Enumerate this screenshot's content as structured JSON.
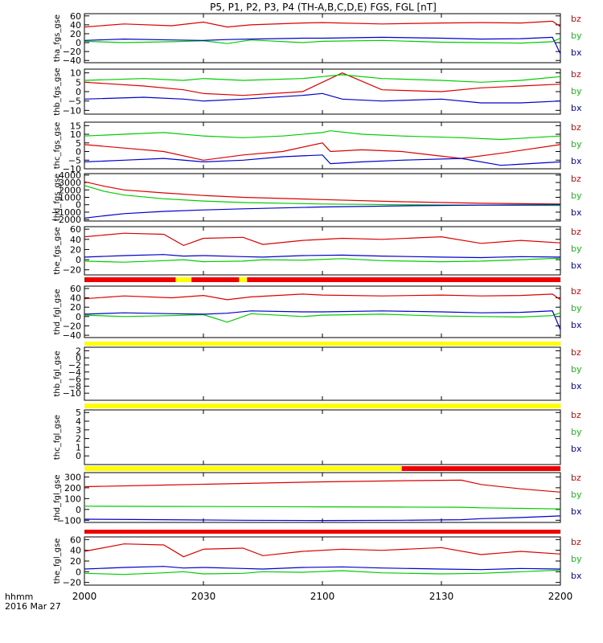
{
  "title": "P5, P1, P2, P3, P4 (TH-A,B,C,D,E) FGS, FGL [nT]",
  "x_axis": {
    "tick_labels": [
      "2000",
      "2030",
      "2100",
      "2130",
      "2200"
    ],
    "tick_minutes": [
      0,
      30,
      60,
      90,
      120
    ],
    "range_minutes": [
      0,
      120
    ],
    "format_label": "hhmm",
    "date_label": "2016 Mar 27"
  },
  "legend": [
    "bz",
    "by",
    "bx"
  ],
  "colors": {
    "bz": "#dd0000",
    "by": "#00cc00",
    "bx": "#0000cc",
    "bar_red": "#ee0000",
    "bar_yellow": "#ffff00",
    "axis": "#000000"
  },
  "chart_data": [
    {
      "type": "line",
      "ylabel": "tha_fgs_gse",
      "ylim": [
        -45,
        65
      ],
      "yticks": [
        -40,
        -20,
        0,
        20,
        40,
        60
      ],
      "grid": false,
      "x": [
        0,
        10,
        22,
        30,
        36,
        42,
        55,
        60,
        75,
        90,
        100,
        110,
        118,
        120
      ],
      "series": [
        {
          "name": "bz",
          "values": [
            35,
            42,
            38,
            46,
            35,
            40,
            44,
            45,
            42,
            44,
            45,
            44,
            48,
            36
          ]
        },
        {
          "name": "by",
          "values": [
            3,
            0,
            2,
            4,
            -2,
            6,
            0,
            3,
            5,
            1,
            0,
            -1,
            2,
            10
          ]
        },
        {
          "name": "bx",
          "values": [
            5,
            8,
            6,
            5,
            7,
            8,
            10,
            10,
            12,
            10,
            8,
            9,
            12,
            -25
          ]
        }
      ]
    },
    {
      "type": "line",
      "ylabel": "thb_fgs_gse",
      "ylim": [
        -12,
        12
      ],
      "yticks": [
        -10,
        -5,
        0,
        5,
        10
      ],
      "grid": false,
      "x": [
        0,
        15,
        25,
        30,
        40,
        55,
        60,
        65,
        75,
        90,
        100,
        110,
        120
      ],
      "series": [
        {
          "name": "bz",
          "values": [
            5,
            3,
            1,
            -1,
            -2,
            0,
            5,
            10,
            1,
            0,
            2,
            3,
            4
          ]
        },
        {
          "name": "by",
          "values": [
            6,
            7,
            6,
            7,
            6,
            7,
            8,
            9,
            7,
            6,
            5,
            6,
            8
          ]
        },
        {
          "name": "bx",
          "values": [
            -4,
            -3,
            -4,
            -5,
            -4,
            -2,
            -1,
            -4,
            -5,
            -4,
            -6,
            -6,
            -5
          ]
        }
      ]
    },
    {
      "type": "line",
      "ylabel": "thc_fgs_gse",
      "ylim": [
        -10,
        17
      ],
      "yticks": [
        -10,
        -5,
        0,
        5,
        10,
        15
      ],
      "grid": false,
      "x": [
        0,
        10,
        20,
        30,
        40,
        50,
        60,
        62,
        70,
        80,
        95,
        105,
        120
      ],
      "series": [
        {
          "name": "bz",
          "values": [
            4,
            2,
            0,
            -5,
            -2,
            0,
            5,
            0,
            1,
            0,
            -4,
            -1,
            4
          ]
        },
        {
          "name": "by",
          "values": [
            9,
            10,
            11,
            9,
            8,
            9,
            11,
            12,
            10,
            9,
            8,
            7,
            9
          ]
        },
        {
          "name": "bx",
          "values": [
            -6,
            -5,
            -4,
            -6,
            -5,
            -3,
            -2,
            -7,
            -6,
            -5,
            -4,
            -8,
            -6
          ]
        }
      ]
    },
    {
      "type": "line",
      "ylabel": "thd_fgs_gse",
      "ylim": [
        -2200,
        4200
      ],
      "yticks": [
        -2000,
        -1000,
        0,
        1000,
        2000,
        3000,
        4000
      ],
      "grid": false,
      "x": [
        0,
        5,
        10,
        20,
        30,
        40,
        60,
        80,
        100,
        120
      ],
      "series": [
        {
          "name": "bz",
          "values": [
            3100,
            2500,
            2000,
            1600,
            1250,
            1000,
            700,
            400,
            200,
            100
          ]
        },
        {
          "name": "by",
          "values": [
            2600,
            1800,
            1300,
            800,
            500,
            300,
            100,
            0,
            -50,
            -100
          ]
        },
        {
          "name": "bx",
          "values": [
            -1800,
            -1500,
            -1200,
            -900,
            -700,
            -550,
            -300,
            -150,
            -50,
            0
          ]
        }
      ]
    },
    {
      "type": "line",
      "ylabel": "the_fgs_gse",
      "ylim": [
        -30,
        65
      ],
      "yticks": [
        -20,
        0,
        20,
        40,
        60
      ],
      "grid": false,
      "x": [
        0,
        10,
        20,
        25,
        30,
        40,
        45,
        55,
        65,
        75,
        90,
        100,
        110,
        120
      ],
      "series": [
        {
          "name": "bz",
          "values": [
            45,
            52,
            50,
            28,
            42,
            44,
            30,
            38,
            42,
            40,
            45,
            32,
            38,
            33
          ]
        },
        {
          "name": "by",
          "values": [
            -3,
            -5,
            -2,
            0,
            -4,
            -3,
            0,
            -1,
            2,
            -2,
            -4,
            -3,
            0,
            3
          ]
        },
        {
          "name": "bx",
          "values": [
            5,
            8,
            10,
            7,
            8,
            6,
            5,
            8,
            9,
            7,
            5,
            4,
            6,
            5
          ]
        }
      ]
    },
    {
      "type": "line",
      "ylabel": "thd_fgl_gse",
      "ylim": [
        -45,
        65
      ],
      "yticks": [
        -40,
        -20,
        0,
        20,
        40,
        60
      ],
      "grid": false,
      "x": [
        0,
        10,
        22,
        30,
        36,
        42,
        55,
        60,
        75,
        90,
        100,
        110,
        118,
        120
      ],
      "series": [
        {
          "name": "bz",
          "values": [
            38,
            44,
            40,
            45,
            36,
            42,
            48,
            46,
            44,
            46,
            44,
            45,
            48,
            36
          ]
        },
        {
          "name": "by",
          "values": [
            3,
            0,
            2,
            4,
            -12,
            6,
            0,
            3,
            5,
            1,
            0,
            -1,
            2,
            8
          ]
        },
        {
          "name": "bx",
          "values": [
            5,
            8,
            6,
            5,
            7,
            12,
            10,
            10,
            12,
            10,
            8,
            9,
            12,
            -28
          ]
        }
      ]
    },
    {
      "type": "line",
      "ylabel": "thb_fgl_gse",
      "ylim": [
        -12,
        3
      ],
      "yticks": [
        -10,
        -8,
        -6,
        -4,
        -2,
        0,
        2
      ],
      "grid": false,
      "x": [],
      "series": [
        {
          "name": "bz",
          "values": []
        },
        {
          "name": "by",
          "values": []
        },
        {
          "name": "bx",
          "values": []
        }
      ]
    },
    {
      "type": "line",
      "ylabel": "thc_fgl_gse",
      "ylim": [
        -1,
        5.3
      ],
      "yticks": [
        0,
        1,
        2,
        3,
        4,
        5
      ],
      "grid": false,
      "x": [],
      "series": [
        {
          "name": "bz",
          "values": []
        },
        {
          "name": "by",
          "values": []
        },
        {
          "name": "bx",
          "values": []
        }
      ]
    },
    {
      "type": "line",
      "ylabel": "thd_fgl_gse",
      "ylim": [
        -120,
        340
      ],
      "yticks": [
        -100,
        0,
        100,
        200,
        300
      ],
      "grid": false,
      "x": [
        0,
        20,
        40,
        60,
        80,
        95,
        100,
        110,
        120
      ],
      "series": [
        {
          "name": "bz",
          "values": [
            210,
            225,
            240,
            255,
            265,
            270,
            230,
            190,
            160
          ]
        },
        {
          "name": "by",
          "values": [
            30,
            28,
            26,
            24,
            22,
            20,
            15,
            10,
            5
          ]
        },
        {
          "name": "bx",
          "values": [
            -90,
            -95,
            -100,
            -102,
            -100,
            -95,
            -85,
            -75,
            -60
          ]
        }
      ]
    },
    {
      "type": "line",
      "ylabel": "the_fgl_gse",
      "ylim": [
        -25,
        65
      ],
      "yticks": [
        -20,
        0,
        20,
        40,
        60
      ],
      "grid": false,
      "x": [
        0,
        10,
        20,
        25,
        30,
        40,
        45,
        55,
        65,
        75,
        90,
        100,
        110,
        120
      ],
      "series": [
        {
          "name": "bz",
          "values": [
            38,
            52,
            50,
            28,
            42,
            44,
            30,
            38,
            42,
            40,
            45,
            32,
            38,
            33
          ]
        },
        {
          "name": "by",
          "values": [
            -3,
            -5,
            -2,
            0,
            -4,
            -3,
            0,
            -1,
            2,
            -2,
            -4,
            -3,
            0,
            3
          ]
        },
        {
          "name": "bx",
          "values": [
            5,
            8,
            10,
            7,
            8,
            6,
            5,
            8,
            9,
            7,
            5,
            4,
            6,
            5
          ]
        }
      ]
    }
  ],
  "status_bars": [
    {
      "after_panel": 4,
      "segments": [
        {
          "from": 0,
          "to": 23,
          "color": "red"
        },
        {
          "from": 23,
          "to": 27,
          "color": "yellow"
        },
        {
          "from": 27,
          "to": 39,
          "color": "red"
        },
        {
          "from": 39,
          "to": 41,
          "color": "yellow"
        },
        {
          "from": 41,
          "to": 120,
          "color": "red"
        }
      ]
    },
    {
      "after_panel": 5,
      "segments": [
        {
          "from": 0,
          "to": 120,
          "color": "yellow"
        }
      ]
    },
    {
      "after_panel": 6,
      "segments": [
        {
          "from": 0,
          "to": 120,
          "color": "yellow"
        }
      ]
    },
    {
      "after_panel": 7,
      "segments": [
        {
          "from": 0,
          "to": 80,
          "color": "yellow"
        },
        {
          "from": 80,
          "to": 120,
          "color": "red"
        }
      ]
    },
    {
      "after_panel": 8,
      "segments": [
        {
          "from": 0,
          "to": 120,
          "color": "red"
        }
      ]
    }
  ]
}
